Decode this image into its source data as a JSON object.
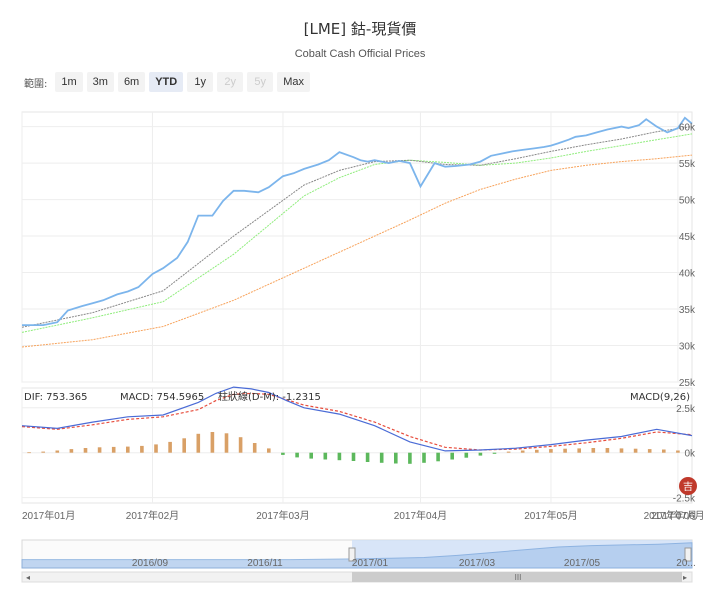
{
  "title": "[LME] 鈷-現貨價",
  "subtitle": "Cobalt Cash Official Prices",
  "range_selector": {
    "label": "範圍:",
    "buttons": [
      {
        "label": "1m",
        "state": "normal"
      },
      {
        "label": "3m",
        "state": "normal"
      },
      {
        "label": "6m",
        "state": "normal"
      },
      {
        "label": "YTD",
        "state": "active"
      },
      {
        "label": "1y",
        "state": "normal"
      },
      {
        "label": "2y",
        "state": "disabled"
      },
      {
        "label": "5y",
        "state": "disabled"
      },
      {
        "label": "Max",
        "state": "normal"
      }
    ]
  },
  "indicators": {
    "dif": "DIF: 753.365",
    "macd": "MACD: 754.5965",
    "hist": "柱狀線(D-M): -1.2315",
    "params": "MACD(9,26)"
  },
  "colors": {
    "price": "#7cb5ec",
    "ma_short": "#888888",
    "ma_mid": "#90ed7d",
    "ma_long": "#f7a35c",
    "dif": "#4a6bd6",
    "macd": "#e74c3c",
    "hist_pos": "#d9a066",
    "hist_neg": "#5cb85c",
    "navigator_sel": "#cfe0f7"
  },
  "chart_data": [
    {
      "type": "line",
      "name": "price",
      "y_ticks": [
        "25k",
        "30k",
        "35k",
        "40k",
        "45k",
        "50k",
        "55k",
        "60k"
      ],
      "ylim": [
        25000,
        62000
      ],
      "x_ticks": [
        "2017年01月",
        "2017年02月",
        "2017年03月",
        "2017年04月",
        "2017年05月",
        "2017年06月",
        "2017年07月"
      ],
      "series": [
        {
          "key": "price",
          "x": [
            0,
            6,
            10,
            13,
            17,
            20,
            23,
            27,
            30,
            33,
            37,
            40,
            44,
            47,
            50,
            54,
            57,
            60,
            63,
            67,
            70,
            74,
            77,
            80,
            84,
            87,
            90,
            94,
            96,
            98,
            100,
            104,
            107,
            110,
            113,
            117,
            120,
            123,
            127,
            130,
            133,
            136,
            139,
            142,
            145,
            148,
            150,
            152,
            155,
            157,
            160,
            163,
            166,
            170,
            172,
            175,
            177,
            180,
            183,
            186,
            188,
            190
          ],
          "values": [
            32800,
            32800,
            33200,
            34800,
            35400,
            35800,
            36200,
            37000,
            37400,
            38000,
            39800,
            40600,
            42000,
            44200,
            47800,
            47800,
            49800,
            51200,
            51200,
            51000,
            51700,
            53200,
            53600,
            54200,
            54800,
            55400,
            56500,
            55800,
            55400,
            55200,
            55400,
            55000,
            55300,
            55000,
            51800,
            55000,
            54500,
            54600,
            54800,
            55200,
            56000,
            56300,
            56600,
            56800,
            57000,
            57200,
            57400,
            57700,
            58200,
            58600,
            58800,
            59200,
            59600,
            60000,
            59800,
            60200,
            61000,
            60000,
            59200,
            59800,
            61200,
            60400
          ]
        },
        {
          "key": "ma_short",
          "x": [
            0,
            20,
            40,
            60,
            80,
            90,
            100,
            110,
            120,
            130,
            140,
            150,
            160,
            170,
            180,
            190
          ],
          "values": [
            32500,
            34500,
            37500,
            45000,
            52000,
            54000,
            55200,
            55400,
            54800,
            54700,
            55600,
            56600,
            57500,
            58300,
            59300,
            60000
          ]
        },
        {
          "key": "ma_mid",
          "x": [
            0,
            20,
            40,
            60,
            80,
            90,
            100,
            110,
            120,
            130,
            140,
            150,
            160,
            170,
            180,
            190
          ],
          "values": [
            31800,
            33800,
            36000,
            42500,
            50500,
            53000,
            54800,
            55400,
            55100,
            54700,
            55000,
            55700,
            56600,
            57400,
            58200,
            59000
          ]
        },
        {
          "key": "ma_long",
          "x": [
            0,
            20,
            40,
            60,
            80,
            100,
            110,
            120,
            130,
            140,
            150,
            160,
            170,
            180,
            190
          ],
          "values": [
            29800,
            30800,
            32600,
            36200,
            40600,
            45000,
            47200,
            49500,
            51400,
            52800,
            54000,
            54700,
            55200,
            55600,
            56100
          ]
        }
      ]
    },
    {
      "type": "line",
      "name": "macd",
      "y_ticks": [
        "2.5k",
        "0k",
        "-2.5k"
      ],
      "ylim": [
        -2800,
        3600
      ],
      "series": [
        {
          "key": "dif",
          "x": [
            0,
            10,
            20,
            30,
            40,
            50,
            55,
            60,
            65,
            70,
            75,
            80,
            90,
            100,
            110,
            120,
            130,
            140,
            150,
            160,
            170,
            180,
            190
          ],
          "values": [
            1500,
            1350,
            1700,
            2000,
            2100,
            2800,
            3300,
            3650,
            3550,
            3350,
            2900,
            2500,
            2150,
            1500,
            600,
            100,
            150,
            250,
            450,
            700,
            900,
            1300,
            950
          ]
        },
        {
          "key": "macd",
          "x": [
            0,
            10,
            20,
            30,
            40,
            50,
            55,
            60,
            65,
            70,
            75,
            80,
            90,
            100,
            110,
            120,
            130,
            140,
            150,
            160,
            170,
            180,
            190
          ],
          "values": [
            1450,
            1300,
            1550,
            1850,
            2000,
            2400,
            2900,
            3250,
            3300,
            3250,
            2950,
            2650,
            2300,
            1700,
            900,
            300,
            150,
            200,
            350,
            550,
            800,
            1150,
            1000
          ]
        },
        {
          "key": "hist",
          "x": [
            2,
            6,
            10,
            14,
            18,
            22,
            26,
            30,
            34,
            38,
            42,
            46,
            50,
            54,
            58,
            62,
            66,
            70,
            74,
            78,
            82,
            86,
            90,
            94,
            98,
            102,
            106,
            110,
            114,
            118,
            122,
            126,
            130,
            134,
            138,
            142,
            146,
            150,
            154,
            158,
            162,
            166,
            170,
            174,
            178,
            182,
            186
          ],
          "values": [
            20,
            60,
            120,
            200,
            260,
            300,
            320,
            340,
            380,
            460,
            600,
            800,
            1050,
            1150,
            1080,
            860,
            540,
            240,
            -120,
            -260,
            -330,
            -380,
            -420,
            -460,
            -520,
            -560,
            -600,
            -620,
            -560,
            -480,
            -380,
            -280,
            -160,
            -60,
            60,
            120,
            160,
            200,
            220,
            240,
            260,
            260,
            240,
            220,
            200,
            180,
            120
          ]
        }
      ]
    },
    {
      "type": "area",
      "name": "navigator",
      "x_ticks": [
        "2016/09",
        "2016/11",
        "2017/01",
        "2017/03",
        "2017/05",
        "20..."
      ],
      "series": [
        {
          "key": "overview",
          "x": [
            0,
            10,
            20,
            30,
            40,
            50,
            55,
            60,
            65,
            70,
            75,
            80,
            85,
            90,
            95,
            100
          ],
          "values": [
            12,
            12,
            12,
            12,
            12,
            13,
            14,
            15,
            18,
            22,
            26,
            30,
            32,
            33,
            34,
            36
          ]
        }
      ],
      "ylim": [
        0,
        40
      ]
    }
  ]
}
